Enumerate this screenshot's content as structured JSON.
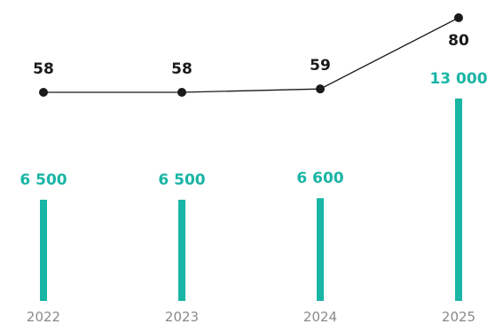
{
  "chart_data": {
    "type": "bar",
    "title": "",
    "xlabel": "",
    "ylabel": "",
    "categories": [
      "2022",
      "2023",
      "2024",
      "2025"
    ],
    "series": [
      {
        "type": "bar",
        "values": [
          6500,
          6500,
          6600,
          13000
        ],
        "value_labels": [
          "6 500",
          "6 500",
          "6 600",
          "13 000"
        ],
        "color": "#19b5a5"
      },
      {
        "type": "line",
        "values": [
          58,
          58,
          59,
          80
        ],
        "value_labels": [
          "58",
          "58",
          "59",
          "80"
        ],
        "color": "#1a1a1a"
      }
    ],
    "ylim_bar": [
      0,
      13000
    ],
    "ylim_line": [
      58,
      80
    ],
    "grid": false,
    "legend": "none",
    "tick_color": "#8a8a8a"
  }
}
